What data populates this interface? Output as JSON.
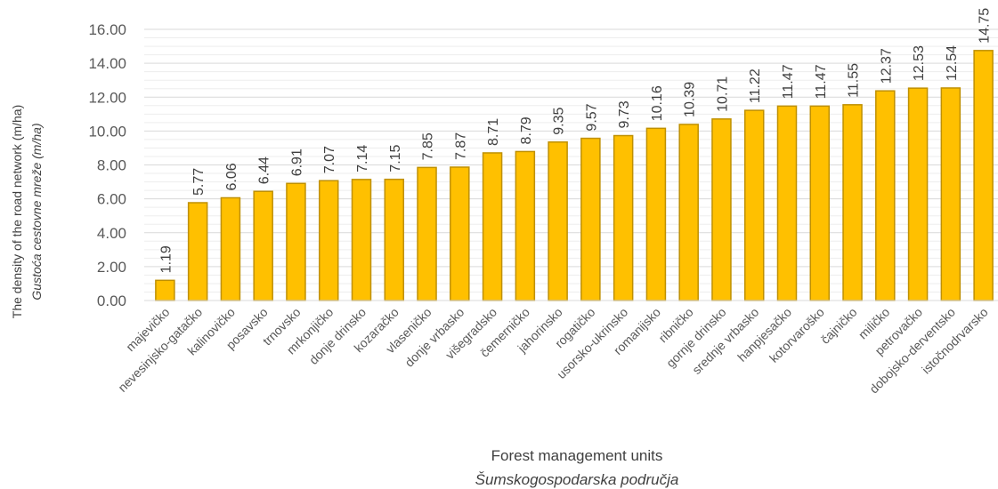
{
  "chart_data": {
    "type": "bar",
    "categories": [
      "majevičko",
      "nevesinjsko-gatačko",
      "kalinovičko",
      "posavsko",
      "trnovsko",
      "mrkonjičko",
      "donje drinsko",
      "kozaračko",
      "vlaseničko",
      "donje vrbasko",
      "višegradsko",
      "čemerničko",
      "jahorinsko",
      "rogatičko",
      "usorsko-ukrinsko",
      "romanijsko",
      "ribničko",
      "gornje drinsko",
      "srednje vrbasko",
      "hanpjesačko",
      "kotorvaroško",
      "čajničko",
      "miličko",
      "petrovačko",
      "dobojsko-derventsko",
      "istočnodrvarsko"
    ],
    "values": [
      1.19,
      5.77,
      6.06,
      6.44,
      6.91,
      7.07,
      7.14,
      7.15,
      7.85,
      7.87,
      8.71,
      8.79,
      9.35,
      9.57,
      9.73,
      10.16,
      10.39,
      10.71,
      11.22,
      11.47,
      11.47,
      11.55,
      12.37,
      12.53,
      12.54,
      14.75
    ],
    "data_labels": [
      "1.19",
      "5.77",
      "6.06",
      "6.44",
      "6.91",
      "7.07",
      "7.14",
      "7.15",
      "7.85",
      "7.87",
      "8.71",
      "8.79",
      "9.35",
      "9.57",
      "9.73",
      "10.16",
      "10.39",
      "10.71",
      "11.22",
      "11.47",
      "11.47",
      "11.55",
      "12.37",
      "12.53",
      "12.54",
      "14.75"
    ],
    "yticks": [
      "0.00",
      "2.00",
      "4.00",
      "6.00",
      "8.00",
      "10.00",
      "12.00",
      "14.00",
      "16.00"
    ],
    "ylim": [
      0,
      16
    ],
    "xlabel": "Forest management  units",
    "xlabel_alt": "Šumskogospodarska područja",
    "ylabel": "The density of the road network (m/ha)",
    "ylabel_alt": "Gustoća cestovne mreže (m/ha)",
    "grid": true,
    "bar_color": "#FFC000",
    "bar_edge_color": "#BF9000"
  }
}
